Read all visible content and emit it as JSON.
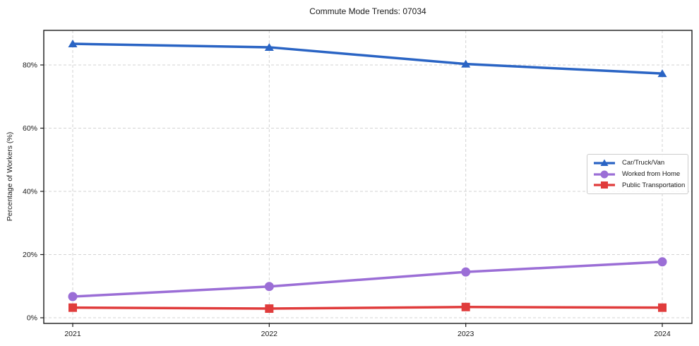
{
  "chart_data": {
    "type": "line",
    "title": "Commute Mode Trends: 07034",
    "xlabel": "",
    "ylabel": "Percentage of Workers (%)",
    "categories": [
      "2021",
      "2022",
      "2023",
      "2024"
    ],
    "series": [
      {
        "name": "Car/Truck/Van",
        "color": "#2a64c4",
        "marker": "triangle",
        "values": [
          86.7,
          85.6,
          80.3,
          77.3
        ]
      },
      {
        "name": "Worked from Home",
        "color": "#9b6ed6",
        "marker": "circle",
        "values": [
          6.7,
          9.9,
          14.5,
          17.7
        ]
      },
      {
        "name": "Public Transportation",
        "color": "#e03c3c",
        "marker": "square",
        "values": [
          3.2,
          2.9,
          3.4,
          3.2
        ]
      }
    ],
    "yticks": [
      {
        "value": 0,
        "label": "0%"
      },
      {
        "value": 20,
        "label": "20%"
      },
      {
        "value": 40,
        "label": "40%"
      },
      {
        "value": 60,
        "label": "60%"
      },
      {
        "value": 80,
        "label": "80%"
      }
    ],
    "ylim": [
      -1.8,
      91.0
    ],
    "grid": true,
    "grid_style": "dashed",
    "grid_color": "#d3d3d3",
    "spine_color": "#1a1a1a",
    "legend_position": "center-right",
    "legend_entries": [
      "Car/Truck/Van",
      "Worked from Home",
      "Public Transportation"
    ]
  }
}
